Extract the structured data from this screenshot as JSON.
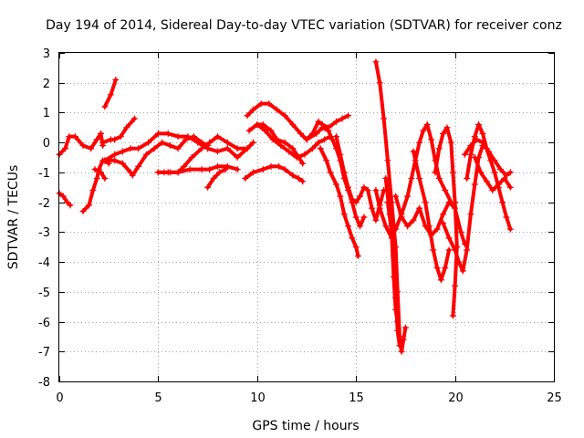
{
  "chart_data": {
    "type": "scatter",
    "title": "Day 194 of 2014, Sidereal Day-to-day VTEC variation (SDTVAR) for receiver conz",
    "xlabel": "GPS time / hours",
    "ylabel": "SDTVAR / TECUs",
    "xlim": [
      0,
      25
    ],
    "ylim": [
      -8,
      3
    ],
    "xticks": [
      0,
      5,
      10,
      15,
      20,
      25
    ],
    "yticks": [
      -8,
      -7,
      -6,
      -5,
      -4,
      -3,
      -2,
      -1,
      0,
      1,
      2,
      3
    ],
    "grid": true,
    "legend": "none",
    "marker": "plus",
    "color": "#ff0000",
    "series": [
      {
        "points": [
          [
            0.0,
            -0.4
          ],
          [
            0.3,
            -0.2
          ],
          [
            0.5,
            0.2
          ],
          [
            0.8,
            0.2
          ],
          [
            1.2,
            -0.1
          ],
          [
            1.6,
            -0.2
          ],
          [
            1.9,
            0.1
          ],
          [
            2.1,
            0.3
          ],
          [
            2.2,
            -0.1
          ]
        ]
      },
      {
        "points": [
          [
            0.0,
            -1.7
          ],
          [
            0.2,
            -1.8
          ],
          [
            0.4,
            -2.0
          ],
          [
            0.55,
            -2.1
          ]
        ]
      },
      {
        "points": [
          [
            1.2,
            -2.3
          ],
          [
            1.5,
            -2.1
          ],
          [
            1.7,
            -1.6
          ],
          [
            1.9,
            -1.2
          ],
          [
            2.0,
            -0.9
          ],
          [
            2.2,
            -0.6
          ],
          [
            2.5,
            -0.7
          ]
        ]
      },
      {
        "points": [
          [
            1.8,
            -0.9
          ],
          [
            2.1,
            -1.0
          ],
          [
            2.3,
            -1.2
          ]
        ]
      },
      {
        "points": [
          [
            2.3,
            1.2
          ],
          [
            2.6,
            1.6
          ],
          [
            2.85,
            2.1
          ]
        ]
      },
      {
        "points": [
          [
            2.2,
            0.0
          ],
          [
            2.6,
            0.1
          ],
          [
            2.8,
            0.1
          ],
          [
            3.1,
            0.2
          ],
          [
            3.4,
            0.5
          ],
          [
            3.8,
            0.8
          ]
        ]
      },
      {
        "points": [
          [
            2.3,
            -0.6
          ],
          [
            2.8,
            -0.4
          ],
          [
            3.2,
            -0.3
          ],
          [
            3.6,
            -0.2
          ],
          [
            4.0,
            -0.2
          ],
          [
            4.5,
            0.0
          ],
          [
            5.0,
            0.3
          ],
          [
            5.5,
            0.3
          ],
          [
            6.0,
            0.2
          ],
          [
            6.5,
            0.2
          ],
          [
            7.0,
            0.0
          ],
          [
            7.5,
            -0.2
          ],
          [
            8.0,
            -0.3
          ],
          [
            8.5,
            -0.2
          ],
          [
            9.0,
            -0.5
          ],
          [
            9.5,
            -0.2
          ],
          [
            9.8,
            0.0
          ]
        ]
      },
      {
        "points": [
          [
            2.3,
            -0.6
          ],
          [
            2.8,
            -0.6
          ],
          [
            3.2,
            -0.7
          ],
          [
            3.6,
            -1.0
          ],
          [
            3.7,
            -1.1
          ],
          [
            4.0,
            -0.8
          ],
          [
            4.4,
            -0.4
          ],
          [
            4.8,
            -0.2
          ],
          [
            5.2,
            0.0
          ],
          [
            5.6,
            -0.1
          ],
          [
            6.0,
            -0.2
          ],
          [
            6.4,
            0.1
          ],
          [
            6.8,
            0.2
          ],
          [
            7.2,
            0.0
          ],
          [
            7.5,
            -0.1
          ]
        ]
      },
      {
        "points": [
          [
            5.0,
            -1.0
          ],
          [
            5.5,
            -1.0
          ],
          [
            6.0,
            -1.0
          ],
          [
            6.3,
            -0.8
          ],
          [
            6.7,
            -0.5
          ],
          [
            7.2,
            -0.2
          ],
          [
            7.6,
            0.0
          ],
          [
            8.0,
            0.2
          ],
          [
            8.5,
            0.0
          ],
          [
            9.0,
            -0.2
          ],
          [
            9.5,
            -0.2
          ]
        ]
      },
      {
        "points": [
          [
            5.0,
            -1.0
          ],
          [
            5.3,
            -1.0
          ]
        ]
      },
      {
        "points": [
          [
            5.6,
            -1.0
          ],
          [
            6.0,
            -1.0
          ],
          [
            6.6,
            -0.9
          ],
          [
            7.2,
            -0.9
          ],
          [
            7.6,
            -0.9
          ],
          [
            8.0,
            -0.8
          ],
          [
            8.5,
            -0.8
          ],
          [
            9.0,
            -0.9
          ]
        ]
      },
      {
        "points": [
          [
            7.5,
            -1.5
          ],
          [
            7.8,
            -1.2
          ],
          [
            8.1,
            -1.0
          ],
          [
            8.4,
            -0.9
          ]
        ]
      },
      {
        "points": [
          [
            9.5,
            0.9
          ],
          [
            9.8,
            1.1
          ],
          [
            10.2,
            1.3
          ],
          [
            10.6,
            1.3
          ],
          [
            11.0,
            1.1
          ],
          [
            11.4,
            0.9
          ],
          [
            11.8,
            0.6
          ],
          [
            12.2,
            0.3
          ],
          [
            12.5,
            0.1
          ],
          [
            12.8,
            0.3
          ],
          [
            13.1,
            0.7
          ],
          [
            13.3,
            0.6
          ],
          [
            13.6,
            0.5
          ],
          [
            14.0,
            0.7
          ],
          [
            14.3,
            0.8
          ],
          [
            14.6,
            0.9
          ]
        ]
      },
      {
        "points": [
          [
            9.6,
            0.4
          ],
          [
            10.0,
            0.6
          ],
          [
            10.3,
            0.6
          ],
          [
            10.7,
            0.4
          ],
          [
            11.0,
            0.1
          ],
          [
            11.4,
            0.0
          ],
          [
            11.8,
            -0.2
          ],
          [
            12.1,
            -0.5
          ],
          [
            12.3,
            -0.7
          ]
        ]
      },
      {
        "points": [
          [
            10.0,
            0.6
          ],
          [
            10.4,
            0.4
          ],
          [
            10.8,
            0.1
          ],
          [
            11.2,
            -0.1
          ],
          [
            11.6,
            -0.3
          ],
          [
            12.0,
            -0.5
          ],
          [
            12.4,
            -0.4
          ],
          [
            12.8,
            -0.2
          ],
          [
            13.1,
            0.0
          ],
          [
            13.4,
            0.1
          ],
          [
            13.7,
            0.2
          ]
        ]
      },
      {
        "points": [
          [
            9.4,
            -1.2
          ],
          [
            9.8,
            -1.0
          ],
          [
            10.3,
            -0.9
          ],
          [
            10.7,
            -0.8
          ],
          [
            11.1,
            -0.8
          ],
          [
            11.4,
            -0.9
          ],
          [
            11.8,
            -1.1
          ],
          [
            12.1,
            -1.2
          ],
          [
            12.3,
            -1.3
          ]
        ]
      },
      {
        "points": [
          [
            12.5,
            0.1
          ],
          [
            13.0,
            0.3
          ],
          [
            13.3,
            0.5
          ],
          [
            13.6,
            0.4
          ],
          [
            13.8,
            0.1
          ],
          [
            14.0,
            -0.2
          ],
          [
            14.2,
            -0.6
          ],
          [
            14.4,
            -1.2
          ],
          [
            14.6,
            -1.6
          ],
          [
            14.8,
            -2.0
          ],
          [
            15.0,
            -2.5
          ],
          [
            15.2,
            -2.8
          ],
          [
            15.4,
            -2.5
          ]
        ]
      },
      {
        "points": [
          [
            13.2,
            -0.2
          ],
          [
            13.5,
            -0.6
          ],
          [
            13.7,
            -1.0
          ],
          [
            14.0,
            -1.4
          ],
          [
            14.2,
            -1.8
          ],
          [
            14.4,
            -2.4
          ],
          [
            14.6,
            -2.8
          ],
          [
            14.8,
            -3.2
          ],
          [
            15.0,
            -3.5
          ],
          [
            15.1,
            -3.8
          ]
        ]
      },
      {
        "points": [
          [
            14.0,
            0.2
          ],
          [
            14.2,
            -0.4
          ],
          [
            14.4,
            -1.0
          ],
          [
            14.6,
            -1.5
          ],
          [
            14.8,
            -1.9
          ],
          [
            15.0,
            -2.0
          ],
          [
            15.2,
            -1.8
          ],
          [
            15.4,
            -1.5
          ],
          [
            15.6,
            -1.6
          ],
          [
            15.8,
            -2.2
          ],
          [
            16.0,
            -2.6
          ],
          [
            16.2,
            -2.1
          ],
          [
            16.4,
            -1.6
          ]
        ]
      },
      {
        "points": [
          [
            16.0,
            2.7
          ],
          [
            16.2,
            2.0
          ],
          [
            16.4,
            0.8
          ],
          [
            16.6,
            -0.6
          ],
          [
            16.8,
            -2.0
          ],
          [
            17.0,
            -3.5
          ],
          [
            17.1,
            -5.0
          ],
          [
            17.2,
            -6.5
          ],
          [
            17.3,
            -7.0
          ],
          [
            17.4,
            -6.6
          ],
          [
            17.5,
            -6.2
          ]
        ]
      },
      {
        "points": [
          [
            16.5,
            -1.2
          ],
          [
            16.7,
            -2.4
          ],
          [
            16.9,
            -3.8
          ],
          [
            17.0,
            -5.2
          ],
          [
            17.1,
            -6.3
          ],
          [
            17.2,
            -6.8
          ]
        ]
      },
      {
        "points": [
          [
            16.6,
            -2.0
          ],
          [
            16.8,
            -3.0
          ],
          [
            16.9,
            -4.5
          ],
          [
            17.0,
            -5.6
          ],
          [
            17.1,
            -6.0
          ]
        ]
      },
      {
        "points": [
          [
            16.0,
            -1.6
          ],
          [
            16.2,
            -2.2
          ],
          [
            16.5,
            -2.8
          ],
          [
            16.8,
            -3.2
          ],
          [
            17.0,
            -2.9
          ],
          [
            17.3,
            -2.4
          ],
          [
            17.6,
            -1.8
          ],
          [
            17.8,
            -1.2
          ],
          [
            18.0,
            -0.6
          ],
          [
            18.2,
            0.0
          ],
          [
            18.4,
            0.4
          ],
          [
            18.6,
            0.6
          ],
          [
            18.8,
            0.1
          ],
          [
            19.0,
            -0.6
          ],
          [
            19.2,
            -1.2
          ],
          [
            19.5,
            -1.6
          ],
          [
            19.8,
            -2.0
          ]
        ]
      },
      {
        "points": [
          [
            17.0,
            -1.8
          ],
          [
            17.3,
            -2.5
          ],
          [
            17.6,
            -2.8
          ],
          [
            17.9,
            -2.6
          ],
          [
            18.2,
            -2.2
          ],
          [
            18.5,
            -2.8
          ],
          [
            18.8,
            -3.1
          ],
          [
            19.1,
            -2.9
          ],
          [
            19.4,
            -2.4
          ],
          [
            19.7,
            -2.0
          ],
          [
            20.0,
            -2.2
          ],
          [
            20.3,
            -3.0
          ],
          [
            20.5,
            -3.4
          ]
        ]
      },
      {
        "points": [
          [
            17.9,
            -0.3
          ],
          [
            18.2,
            -1.2
          ],
          [
            18.5,
            -2.0
          ],
          [
            18.7,
            -2.8
          ],
          [
            18.9,
            -3.6
          ],
          [
            19.1,
            -4.2
          ],
          [
            19.3,
            -4.6
          ],
          [
            19.5,
            -4.2
          ],
          [
            19.7,
            -3.6
          ]
        ]
      },
      {
        "points": [
          [
            19.0,
            -1.0
          ],
          [
            19.2,
            -0.2
          ],
          [
            19.4,
            0.3
          ],
          [
            19.6,
            0.5
          ],
          [
            19.8,
            0.0
          ],
          [
            19.9,
            -1.0
          ],
          [
            20.0,
            -2.0
          ],
          [
            20.1,
            -3.5
          ],
          [
            20.0,
            -4.8
          ],
          [
            19.9,
            -5.8
          ]
        ]
      },
      {
        "points": [
          [
            19.4,
            -2.7
          ],
          [
            19.7,
            -3.2
          ],
          [
            20.0,
            -3.6
          ],
          [
            20.2,
            -4.0
          ],
          [
            20.4,
            -4.3
          ],
          [
            20.6,
            -3.6
          ],
          [
            20.8,
            -2.4
          ],
          [
            21.0,
            -1.4
          ],
          [
            21.2,
            -0.5
          ],
          [
            21.4,
            -0.1
          ]
        ]
      },
      {
        "points": [
          [
            20.6,
            -1.2
          ],
          [
            20.8,
            -0.4
          ],
          [
            21.0,
            0.2
          ],
          [
            21.2,
            0.6
          ],
          [
            21.4,
            0.3
          ],
          [
            21.6,
            -0.2
          ],
          [
            21.8,
            -0.6
          ],
          [
            22.0,
            -1.0
          ],
          [
            22.2,
            -1.5
          ],
          [
            22.4,
            -2.0
          ],
          [
            22.6,
            -2.5
          ],
          [
            22.8,
            -2.9
          ]
        ]
      },
      {
        "points": [
          [
            21.0,
            -0.5
          ],
          [
            21.3,
            -1.0
          ],
          [
            21.6,
            -1.3
          ],
          [
            21.9,
            -1.6
          ],
          [
            22.2,
            -1.4
          ],
          [
            22.5,
            -1.2
          ],
          [
            22.8,
            -1.5
          ]
        ]
      },
      {
        "points": [
          [
            20.5,
            -0.4
          ],
          [
            20.8,
            -0.1
          ],
          [
            21.1,
            0.1
          ],
          [
            21.4,
            0.0
          ],
          [
            21.7,
            -0.3
          ],
          [
            22.0,
            -0.6
          ],
          [
            22.3,
            -0.9
          ],
          [
            22.6,
            -1.1
          ],
          [
            22.8,
            -1.0
          ]
        ]
      }
    ]
  }
}
